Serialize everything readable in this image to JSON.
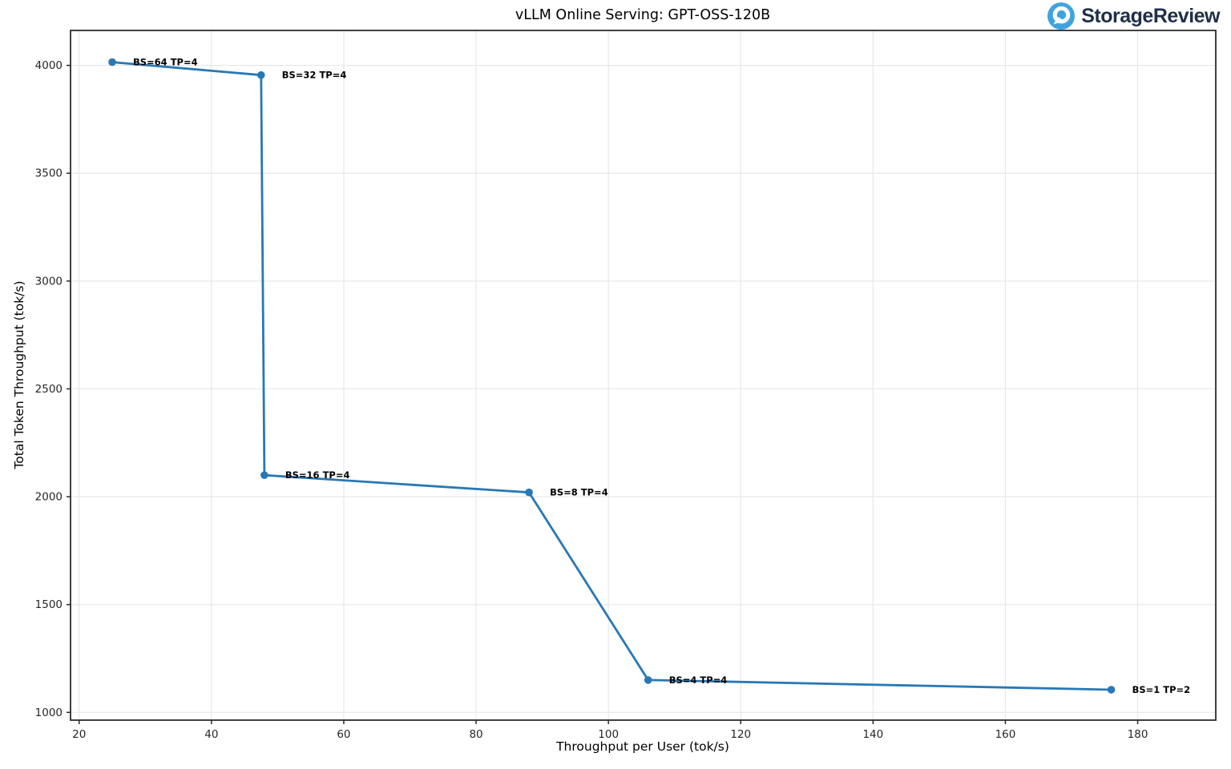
{
  "header": {
    "title": "vLLM Online Serving: GPT-OSS-120B"
  },
  "logo": {
    "text": "StorageReview",
    "icon": "storagereview-circle-icon",
    "icon_color": "#3fa3e0",
    "text_color": "#1f2f49"
  },
  "chart_data": {
    "type": "line",
    "title": "vLLM Online Serving: GPT-OSS-120B",
    "xlabel": "Throughput per User (tok/s)",
    "ylabel": "Total Token Throughput (tok/s)",
    "xlim": [
      18.7,
      191.8
    ],
    "ylim": [
      964,
      4162
    ],
    "x_ticks": [
      20,
      40,
      60,
      80,
      100,
      120,
      140,
      160,
      180
    ],
    "y_ticks": [
      1000,
      1500,
      2000,
      2500,
      3000,
      3500,
      4000
    ],
    "grid": true,
    "legend": "none",
    "colors": {
      "line": "#2878b5",
      "marker": "#2878b5",
      "grid": "#e8e8e8",
      "spine": "#2b2b2b",
      "tick_label": "#262626",
      "annotation": "#000000"
    },
    "series": [
      {
        "name": "GPT-OSS-120B",
        "points": [
          {
            "x": 25,
            "y": 4015,
            "label": "BS=64 TP=4"
          },
          {
            "x": 47.5,
            "y": 3955,
            "label": "BS=32 TP=4"
          },
          {
            "x": 48,
            "y": 2100,
            "label": "BS=16 TP=4"
          },
          {
            "x": 88,
            "y": 2020,
            "label": "BS=8 TP=4"
          },
          {
            "x": 106,
            "y": 1150,
            "label": "BS=4 TP=4"
          },
          {
            "x": 176,
            "y": 1105,
            "label": "BS=1 TP=2"
          }
        ]
      }
    ]
  }
}
